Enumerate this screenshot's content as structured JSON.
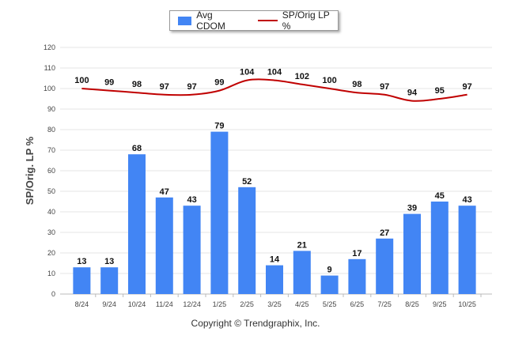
{
  "chart_data": {
    "type": "bar",
    "categories": [
      "8/24",
      "9/24",
      "10/24",
      "11/24",
      "12/24",
      "1/25",
      "2/25",
      "3/25",
      "4/25",
      "5/25",
      "6/25",
      "7/25",
      "8/25",
      "9/25",
      "10/25"
    ],
    "series": [
      {
        "name": "Avg CDOM",
        "type": "bar",
        "values": [
          13,
          13,
          68,
          47,
          43,
          79,
          52,
          14,
          21,
          9,
          17,
          27,
          39,
          45,
          43
        ]
      },
      {
        "name": "SP/Orig LP %",
        "type": "line",
        "values": [
          100,
          99,
          98,
          97,
          97,
          99,
          104,
          104,
          102,
          100,
          98,
          97,
          94,
          95,
          97
        ]
      }
    ],
    "ylabel": "SP/Orig. LP %",
    "ylim": [
      0,
      120
    ],
    "yticks": [
      0,
      10,
      20,
      30,
      40,
      50,
      60,
      70,
      80,
      90,
      100,
      110,
      120
    ],
    "grid": true,
    "legend": "top-center",
    "colors": {
      "bar": "#4285f4",
      "line": "#c00000"
    }
  },
  "footer": {
    "copyright": "Copyright © Trendgraphix, Inc."
  }
}
